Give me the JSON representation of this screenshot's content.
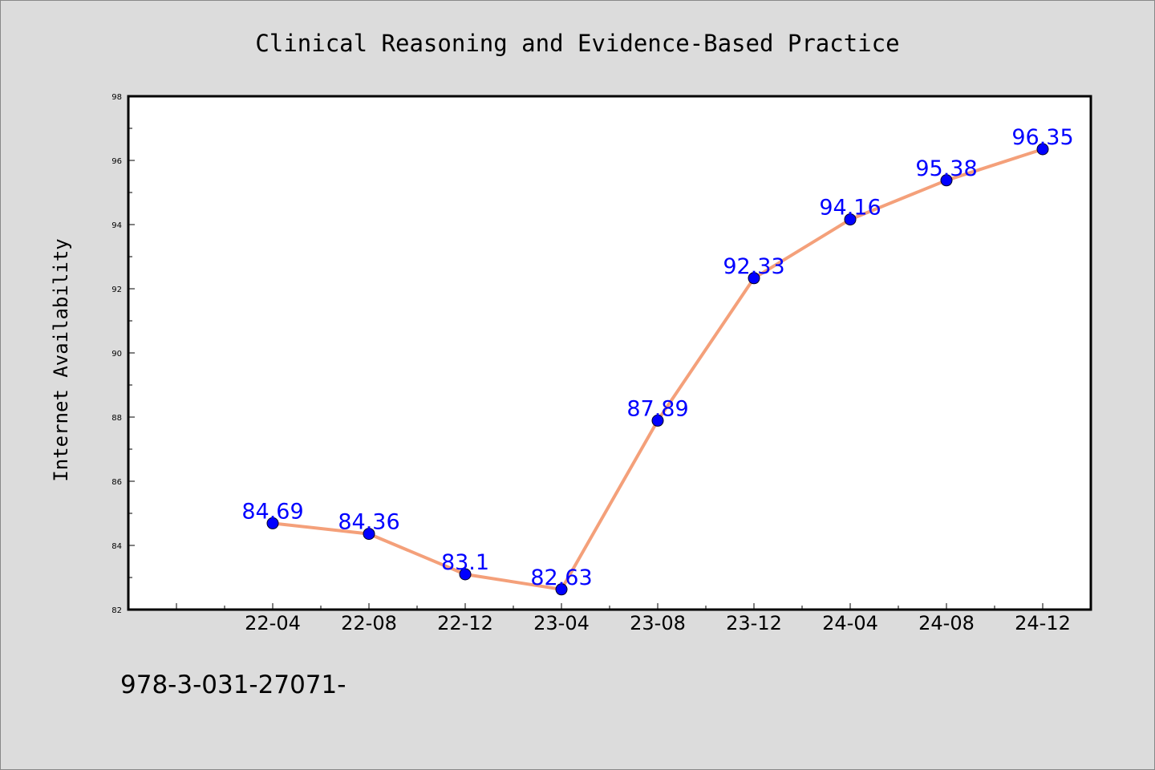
{
  "chart_data": {
    "type": "line",
    "title": "Clinical Reasoning and Evidence-Based Practice",
    "xlabel": "",
    "ylabel": "Internet Availability",
    "categories": [
      "22-04",
      "22-08",
      "22-12",
      "23-04",
      "23-08",
      "23-12",
      "24-04",
      "24-08",
      "24-12"
    ],
    "series": [
      {
        "values": [
          84.69,
          84.36,
          83.1,
          82.63,
          87.89,
          92.33,
          94.16,
          95.38,
          96.35
        ],
        "labels": [
          "84.69",
          "84.36",
          "83.1",
          "82.63",
          "87.89",
          "92.33",
          "94.16",
          "95.38",
          "96.35"
        ],
        "line_color": "#f4a07a",
        "marker_color": "#0000ff"
      }
    ],
    "ylim": [
      82,
      98
    ],
    "yticks": [
      "82",
      "84",
      "86",
      "88",
      "90",
      "92",
      "94",
      "96",
      "98"
    ],
    "grid": false,
    "legend": "none"
  },
  "footer": {
    "isbn_text": "978-3-031-27071-"
  },
  "colors": {
    "background": "#dcdcdc",
    "plot_area": "#ffffff",
    "axis": "#000000"
  }
}
